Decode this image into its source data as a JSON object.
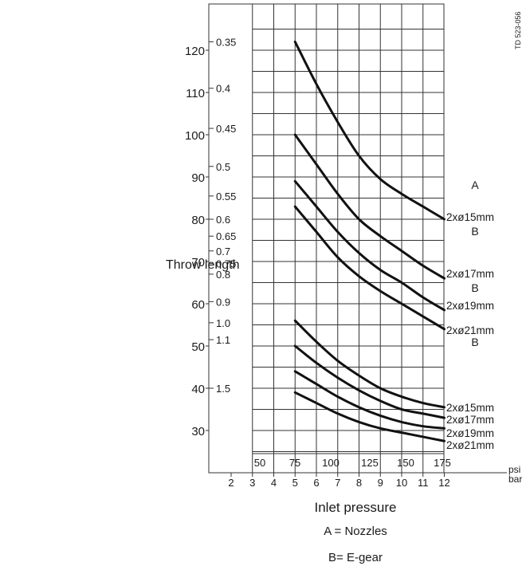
{
  "chart_data": {
    "type": "line",
    "y_axis_label": "Throw length",
    "x_axis_label": "Inlet pressure",
    "doc_code": "TD 523-056",
    "legend_notes": [
      "A = Nozzles",
      "B= E-gear"
    ],
    "y_primary_ticks": [
      "30",
      "40",
      "50",
      "60",
      "70",
      "80",
      "90",
      "100",
      "110",
      "120"
    ],
    "y_secondary_ticks": [
      "0.35",
      "0.4",
      "0.45",
      "0.5",
      "0.55",
      "0.6",
      "0.65",
      "0.7",
      "0.75",
      "0.8",
      "0.9",
      "1.0",
      "1.1",
      "1.5"
    ],
    "x_psi_ticks": [
      "50",
      "75",
      "100",
      "125",
      "150",
      "175"
    ],
    "x_psi_unit": "psi",
    "x_bar_ticks": [
      "2",
      "3",
      "4",
      "5",
      "6",
      "7",
      "8",
      "9",
      "10",
      "11",
      "12"
    ],
    "x_bar_unit": "bar",
    "series_group_labels": [
      "A",
      "B",
      "B",
      "B"
    ],
    "series": [
      {
        "name": "2xø15mm",
        "group": "A",
        "x_bar": [
          5,
          6,
          7,
          8,
          9,
          10,
          11,
          12
        ],
        "y": [
          122,
          112,
          103,
          95,
          89.5,
          86,
          83,
          80
        ]
      },
      {
        "name": "2xø17mm",
        "group": "A",
        "x_bar": [
          5,
          6,
          7,
          8,
          9,
          10,
          11,
          12
        ],
        "y": [
          100,
          93,
          86,
          80,
          76,
          72.5,
          69,
          66
        ]
      },
      {
        "name": "2xø19mm",
        "group": "A",
        "x_bar": [
          5,
          6,
          7,
          8,
          9,
          10,
          11,
          12
        ],
        "y": [
          89,
          83,
          77,
          72,
          68,
          65,
          61.5,
          58.5
        ]
      },
      {
        "name": "2xø21mm",
        "group": "A",
        "x_bar": [
          5,
          6,
          7,
          8,
          9,
          10,
          11,
          12
        ],
        "y": [
          83,
          77,
          71,
          66.5,
          63,
          60,
          57,
          54
        ]
      },
      {
        "name": "2xø15mm",
        "group": "B",
        "x_bar": [
          5,
          6,
          7,
          8,
          9,
          10,
          11,
          12
        ],
        "y": [
          56,
          51,
          46.5,
          43,
          40,
          38,
          36.5,
          35.5
        ]
      },
      {
        "name": "2xø17mm",
        "group": "B",
        "x_bar": [
          5,
          6,
          7,
          8,
          9,
          10,
          11,
          12
        ],
        "y": [
          50,
          46,
          42.5,
          39.5,
          37,
          35,
          34,
          33
        ]
      },
      {
        "name": "2xø19mm",
        "group": "B",
        "x_bar": [
          5,
          6,
          7,
          8,
          9,
          10,
          11,
          12
        ],
        "y": [
          44,
          41,
          38,
          35.5,
          33.5,
          32,
          31,
          30.5
        ]
      },
      {
        "name": "2xø21mm",
        "group": "B",
        "x_bar": [
          5,
          6,
          7,
          8,
          9,
          10,
          11,
          12
        ],
        "y": [
          39,
          36.5,
          34,
          32,
          30.5,
          29.5,
          28.5,
          27.5
        ]
      }
    ]
  }
}
